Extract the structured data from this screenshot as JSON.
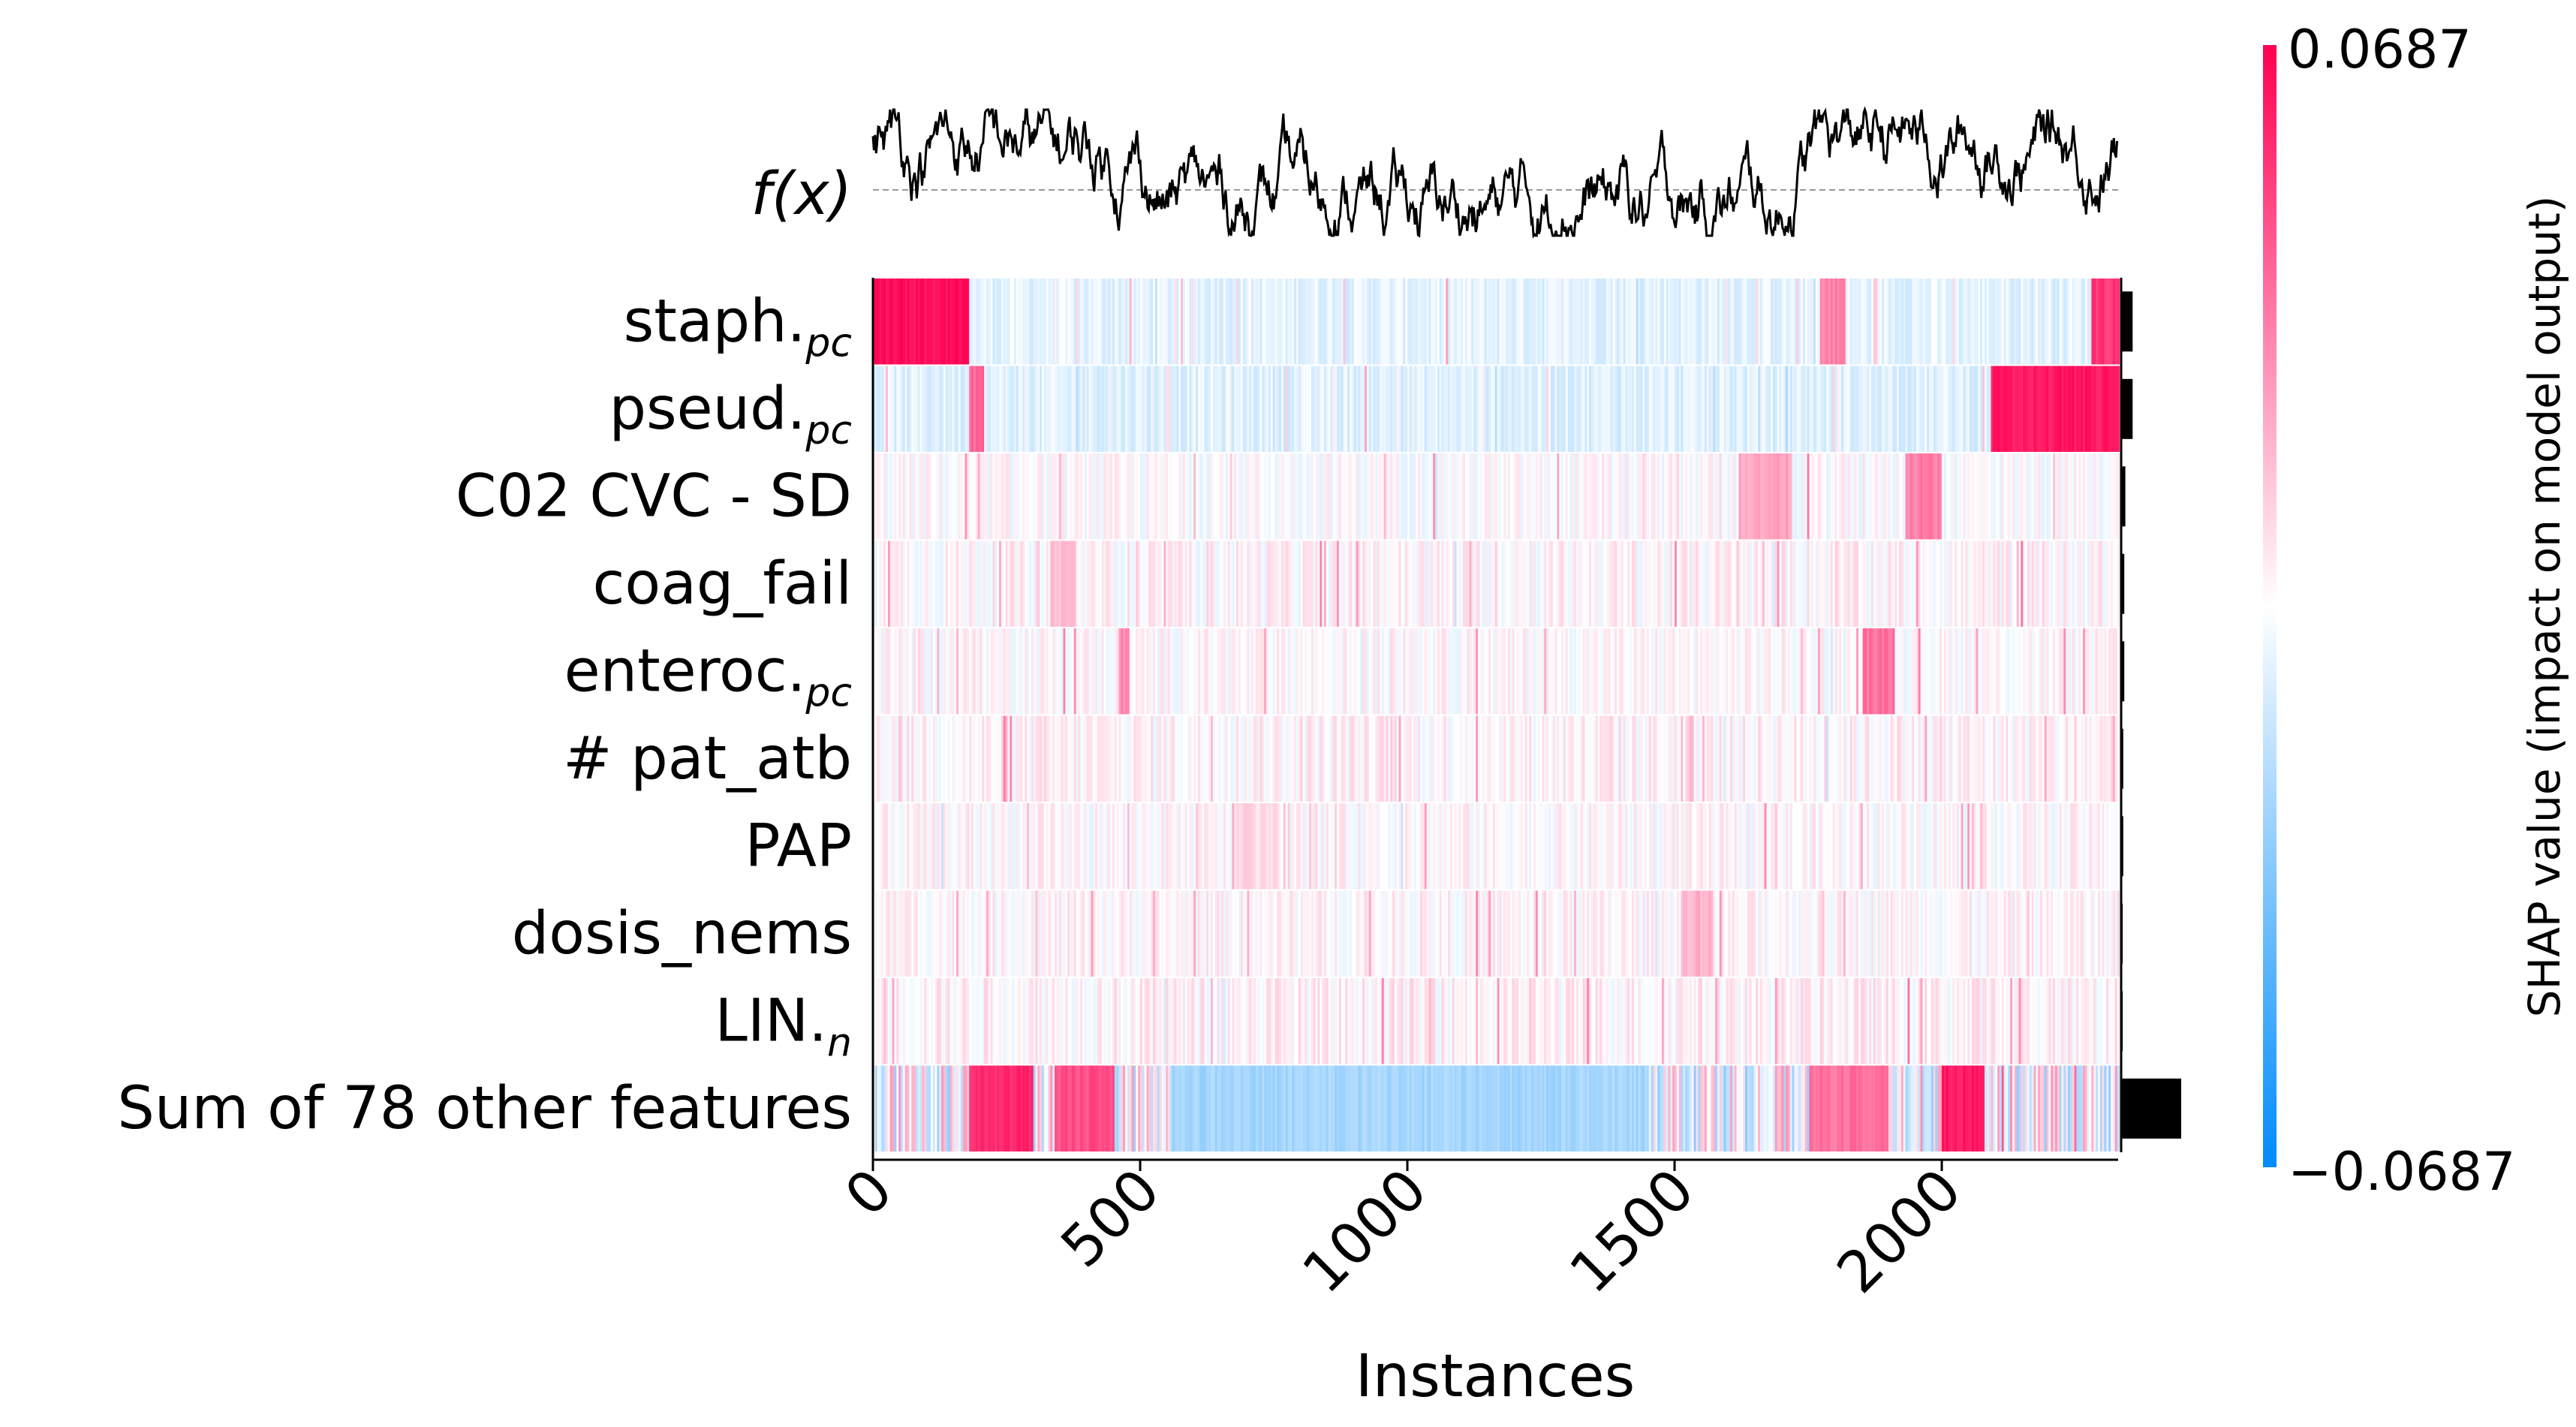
{
  "chart_data": {
    "type": "heatmap",
    "title": "",
    "xlabel": "Instances",
    "ylabel": "",
    "xlim": [
      0,
      2330
    ],
    "xticks": [
      "0",
      "500",
      "1000",
      "1500",
      "2000"
    ],
    "fx_label": "f(x)",
    "features": [
      {
        "name": "staph.",
        "sub": "pc",
        "importance": 0.0022
      },
      {
        "name": "pseud.",
        "sub": "pc",
        "importance": 0.0022
      },
      {
        "name": "C02 CVC - SD",
        "sub": "",
        "importance": 0.0008
      },
      {
        "name": "coag_fail",
        "sub": "",
        "importance": 0.0006
      },
      {
        "name": "enteroc.",
        "sub": "pc",
        "importance": 0.0006
      },
      {
        "name": "# pat_atb",
        "sub": "",
        "importance": 0.0004
      },
      {
        "name": "PAP",
        "sub": "",
        "importance": 0.0004
      },
      {
        "name": "dosis_nems",
        "sub": "",
        "importance": 0.0003
      },
      {
        "name": "LIN.",
        "sub": "n",
        "importance": 0.0003
      },
      {
        "name": "Sum of 78 other features",
        "sub": "",
        "importance": 0.0115
      }
    ],
    "colorbar": {
      "max_label": "0.0687",
      "min_label": "−0.0687",
      "label": "SHAP value (impact on model output)",
      "vmin": -0.0687,
      "vmax": 0.0687,
      "color_low": "#008bfb",
      "color_mid": "#ffffff",
      "color_high": "#ff0052"
    }
  }
}
